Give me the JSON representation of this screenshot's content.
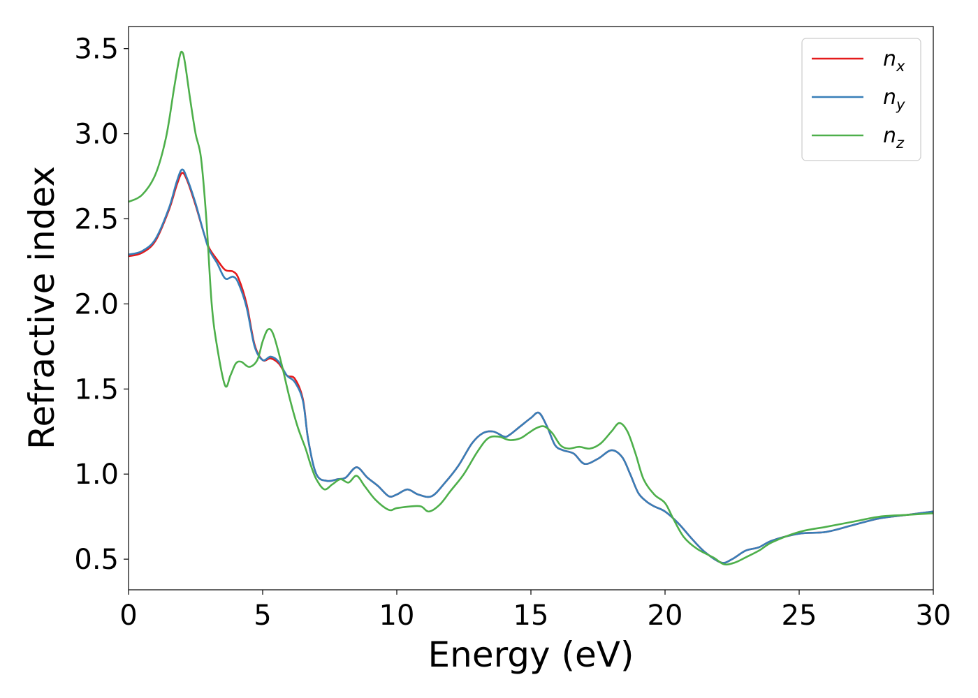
{
  "chart_data": {
    "type": "line",
    "xlabel": "Energy (eV)",
    "ylabel": "Refractive index",
    "xlim": [
      0,
      30
    ],
    "ylim": [
      0.32,
      3.63
    ],
    "xticks": [
      0,
      5,
      10,
      15,
      20,
      25,
      30
    ],
    "xtick_labels": [
      "0",
      "5",
      "10",
      "15",
      "20",
      "25",
      "30"
    ],
    "yticks": [
      0.5,
      1.0,
      1.5,
      2.0,
      2.5,
      3.0,
      3.5
    ],
    "ytick_labels": [
      "0.5",
      "1.0",
      "1.5",
      "2.0",
      "2.5",
      "3.0",
      "3.5"
    ],
    "grid": false,
    "legend_position": "top-right",
    "series": [
      {
        "name": "n",
        "subscript": "x",
        "color": "#e41a1c",
        "x": [
          0,
          0.5,
          1.0,
          1.5,
          1.8,
          2.0,
          2.2,
          2.5,
          2.8,
          3.0,
          3.3,
          3.6,
          3.9,
          4.1,
          4.4,
          4.7,
          5.0,
          5.3,
          5.6,
          5.9,
          6.2,
          6.5,
          6.7,
          7.0,
          7.4,
          7.8,
          8.1,
          8.5,
          8.9,
          9.3,
          9.7,
          10.0,
          10.4,
          10.8,
          11.3,
          11.8,
          12.3,
          12.8,
          13.2,
          13.6,
          14.0,
          14.2,
          14.6,
          15.0,
          15.3,
          15.6,
          15.9,
          16.2,
          16.6,
          17.0,
          17.5,
          18.0,
          18.4,
          18.7,
          19.0,
          19.3,
          19.6,
          20.0,
          20.5,
          21.0,
          21.5,
          22.1,
          22.5,
          23.0,
          23.5,
          24.0,
          25.0,
          26.0,
          27.0,
          28.0,
          29.0,
          30.0
        ],
        "values": [
          2.28,
          2.3,
          2.37,
          2.55,
          2.7,
          2.77,
          2.72,
          2.58,
          2.42,
          2.33,
          2.26,
          2.2,
          2.19,
          2.15,
          2.0,
          1.76,
          1.67,
          1.68,
          1.65,
          1.58,
          1.56,
          1.44,
          1.2,
          1.0,
          0.96,
          0.97,
          0.98,
          1.04,
          0.98,
          0.93,
          0.87,
          0.88,
          0.91,
          0.88,
          0.87,
          0.95,
          1.05,
          1.18,
          1.24,
          1.25,
          1.22,
          1.23,
          1.28,
          1.33,
          1.36,
          1.28,
          1.17,
          1.14,
          1.12,
          1.06,
          1.09,
          1.14,
          1.1,
          1.0,
          0.89,
          0.84,
          0.81,
          0.78,
          0.71,
          0.62,
          0.54,
          0.48,
          0.5,
          0.55,
          0.57,
          0.61,
          0.65,
          0.66,
          0.7,
          0.74,
          0.76,
          0.78
        ]
      },
      {
        "name": "n",
        "subscript": "y",
        "color": "#377eb8",
        "x": [
          0,
          0.5,
          1.0,
          1.5,
          1.8,
          2.0,
          2.2,
          2.5,
          2.8,
          3.0,
          3.3,
          3.6,
          3.9,
          4.1,
          4.4,
          4.7,
          5.0,
          5.3,
          5.6,
          5.9,
          6.2,
          6.5,
          6.7,
          7.0,
          7.4,
          7.8,
          8.1,
          8.5,
          8.9,
          9.3,
          9.7,
          10.0,
          10.4,
          10.8,
          11.3,
          11.8,
          12.3,
          12.8,
          13.2,
          13.6,
          14.0,
          14.2,
          14.6,
          15.0,
          15.3,
          15.6,
          15.9,
          16.2,
          16.6,
          17.0,
          17.5,
          18.0,
          18.4,
          18.7,
          19.0,
          19.3,
          19.6,
          20.0,
          20.5,
          21.0,
          21.5,
          22.1,
          22.5,
          23.0,
          23.5,
          24.0,
          25.0,
          26.0,
          27.0,
          28.0,
          29.0,
          30.0
        ],
        "values": [
          2.29,
          2.31,
          2.38,
          2.56,
          2.72,
          2.79,
          2.73,
          2.59,
          2.42,
          2.32,
          2.24,
          2.15,
          2.16,
          2.12,
          1.98,
          1.75,
          1.67,
          1.69,
          1.66,
          1.58,
          1.54,
          1.43,
          1.2,
          1.0,
          0.96,
          0.97,
          0.98,
          1.04,
          0.98,
          0.93,
          0.87,
          0.88,
          0.91,
          0.88,
          0.87,
          0.95,
          1.05,
          1.18,
          1.24,
          1.25,
          1.22,
          1.23,
          1.28,
          1.33,
          1.36,
          1.28,
          1.17,
          1.14,
          1.12,
          1.06,
          1.09,
          1.14,
          1.1,
          1.0,
          0.89,
          0.84,
          0.81,
          0.78,
          0.71,
          0.62,
          0.54,
          0.48,
          0.5,
          0.55,
          0.57,
          0.61,
          0.65,
          0.66,
          0.7,
          0.74,
          0.76,
          0.78
        ]
      },
      {
        "name": "n",
        "subscript": "z",
        "color": "#4daf4a",
        "x": [
          0,
          0.5,
          1.0,
          1.4,
          1.7,
          1.9,
          2.0,
          2.1,
          2.3,
          2.5,
          2.7,
          2.9,
          3.1,
          3.3,
          3.6,
          3.8,
          4.0,
          4.2,
          4.5,
          4.8,
          5.0,
          5.2,
          5.4,
          5.7,
          6.0,
          6.3,
          6.6,
          6.8,
          7.0,
          7.3,
          7.6,
          7.9,
          8.2,
          8.5,
          8.8,
          9.2,
          9.7,
          10.0,
          10.5,
          10.9,
          11.2,
          11.6,
          12.0,
          12.5,
          13.0,
          13.4,
          13.8,
          14.2,
          14.6,
          14.9,
          15.2,
          15.5,
          15.8,
          16.1,
          16.4,
          16.8,
          17.2,
          17.6,
          18.0,
          18.3,
          18.6,
          18.9,
          19.2,
          19.6,
          20.0,
          20.3,
          20.7,
          21.2,
          21.8,
          22.2,
          22.6,
          23.0,
          23.5,
          24.0,
          25.0,
          26.0,
          27.0,
          28.0,
          29.0,
          30.0
        ],
        "values": [
          2.6,
          2.64,
          2.76,
          2.98,
          3.27,
          3.45,
          3.48,
          3.42,
          3.2,
          3.0,
          2.86,
          2.5,
          2.0,
          1.75,
          1.52,
          1.58,
          1.65,
          1.66,
          1.63,
          1.67,
          1.78,
          1.85,
          1.82,
          1.65,
          1.45,
          1.28,
          1.15,
          1.05,
          0.97,
          0.91,
          0.94,
          0.97,
          0.95,
          0.99,
          0.93,
          0.85,
          0.79,
          0.8,
          0.81,
          0.81,
          0.78,
          0.82,
          0.9,
          1.0,
          1.13,
          1.21,
          1.22,
          1.2,
          1.21,
          1.24,
          1.27,
          1.28,
          1.24,
          1.17,
          1.15,
          1.16,
          1.15,
          1.18,
          1.25,
          1.3,
          1.25,
          1.12,
          0.97,
          0.88,
          0.83,
          0.74,
          0.63,
          0.56,
          0.51,
          0.47,
          0.48,
          0.51,
          0.55,
          0.6,
          0.66,
          0.69,
          0.72,
          0.75,
          0.76,
          0.77
        ]
      }
    ]
  }
}
